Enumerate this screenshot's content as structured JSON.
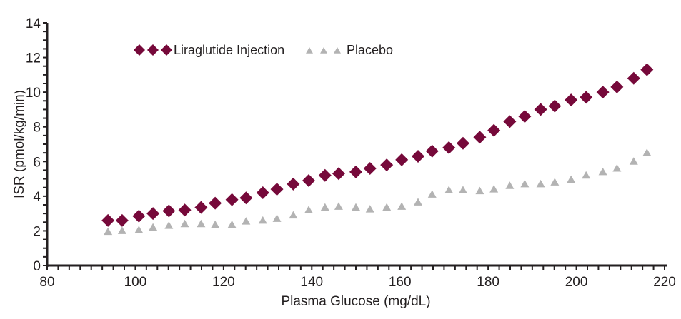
{
  "chart_data": {
    "type": "scatter",
    "title": "",
    "xlabel": "Plasma Glucose (mg/dL)",
    "ylabel": "ISR (pmol/kg/min)",
    "xlim": [
      80,
      220
    ],
    "ylim": [
      0,
      14
    ],
    "xticks": [
      80,
      100,
      120,
      140,
      160,
      180,
      200,
      220
    ],
    "yticks": [
      0,
      2,
      4,
      6,
      8,
      10,
      12,
      14
    ],
    "grid": false,
    "legend_position": "top-left",
    "series": [
      {
        "name": "Liraglutide Injection",
        "marker": "diamond",
        "color": "#76093a",
        "x": [
          93.8,
          97.0,
          100.8,
          104.0,
          107.6,
          111.2,
          114.9,
          118.1,
          121.9,
          125.1,
          128.9,
          132.1,
          135.8,
          139.3,
          143.0,
          146.1,
          150.0,
          153.2,
          157.0,
          160.4,
          164.1,
          167.3,
          171.1,
          174.3,
          178.1,
          181.3,
          184.9,
          188.3,
          191.9,
          195.1,
          198.8,
          202.2,
          206.0,
          209.2,
          213.0,
          216.0
        ],
        "y": [
          2.6,
          2.6,
          2.85,
          3.0,
          3.15,
          3.2,
          3.35,
          3.6,
          3.8,
          3.9,
          4.2,
          4.4,
          4.7,
          4.9,
          5.2,
          5.3,
          5.4,
          5.6,
          5.8,
          6.1,
          6.3,
          6.6,
          6.8,
          7.05,
          7.4,
          7.8,
          8.3,
          8.6,
          9.0,
          9.2,
          9.55,
          9.7,
          10.0,
          10.3,
          10.8,
          11.3
        ]
      },
      {
        "name": "Placebo",
        "marker": "triangle",
        "color": "#b3b3b3",
        "x": [
          93.8,
          97.0,
          100.8,
          104.0,
          107.6,
          111.2,
          114.9,
          118.1,
          121.9,
          125.1,
          128.9,
          132.1,
          135.8,
          139.3,
          143.0,
          146.1,
          150.0,
          153.2,
          157.0,
          160.4,
          164.1,
          167.3,
          171.1,
          174.3,
          178.1,
          181.3,
          184.9,
          188.3,
          191.9,
          195.1,
          198.8,
          202.2,
          206.0,
          209.2,
          213.0,
          216.0
        ],
        "y": [
          1.95,
          2.0,
          2.05,
          2.2,
          2.3,
          2.4,
          2.4,
          2.35,
          2.35,
          2.55,
          2.6,
          2.7,
          2.9,
          3.2,
          3.35,
          3.4,
          3.35,
          3.25,
          3.35,
          3.4,
          3.65,
          4.1,
          4.35,
          4.35,
          4.3,
          4.4,
          4.6,
          4.7,
          4.7,
          4.8,
          4.95,
          5.2,
          5.4,
          5.6,
          6.0,
          6.5
        ]
      }
    ]
  }
}
